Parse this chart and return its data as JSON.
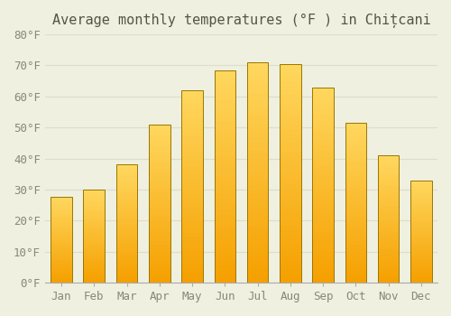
{
  "title": "Average monthly temperatures (°F ) in Chițcani",
  "months": [
    "Jan",
    "Feb",
    "Mar",
    "Apr",
    "May",
    "Jun",
    "Jul",
    "Aug",
    "Sep",
    "Oct",
    "Nov",
    "Dec"
  ],
  "values": [
    27.5,
    30.0,
    38.0,
    51.0,
    62.0,
    68.5,
    71.0,
    70.5,
    63.0,
    51.5,
    41.0,
    33.0
  ],
  "bar_color": "#F5A623",
  "bar_color_light": "#FDD06A",
  "bar_edge_color": "#888800",
  "ylabel_ticks": [
    "0°F",
    "10°F",
    "20°F",
    "30°F",
    "40°F",
    "50°F",
    "60°F",
    "70°F",
    "80°F"
  ],
  "ytick_values": [
    0,
    10,
    20,
    30,
    40,
    50,
    60,
    70,
    80
  ],
  "ylim": [
    0,
    80
  ],
  "background_color": "#f0f0e0",
  "grid_color": "#ddddcc",
  "title_fontsize": 11,
  "tick_fontsize": 9,
  "tick_color": "#888877"
}
